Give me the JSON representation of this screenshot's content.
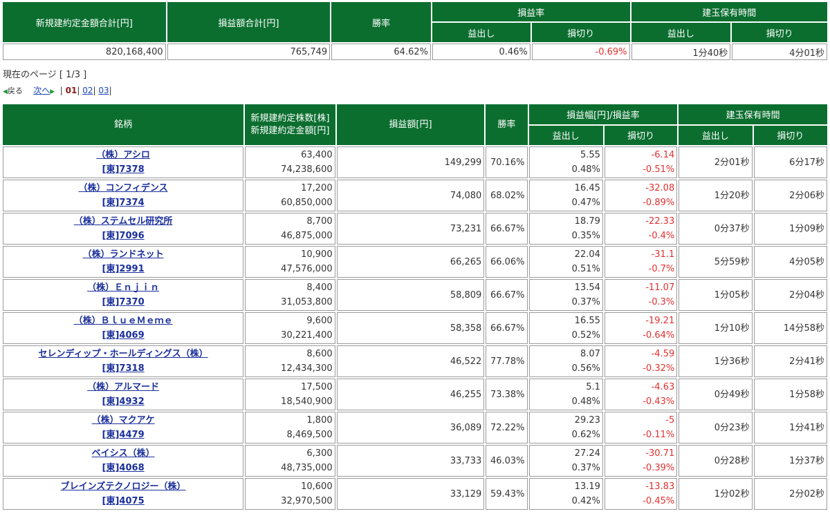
{
  "summary": {
    "headers": {
      "total_amount": "新規建約定金額合計[円]",
      "total_pl": "損益額合計[円]",
      "win_rate": "勝率",
      "pl_rate": "損益率",
      "pl_rate_profit": "益出し",
      "pl_rate_loss": "損切り",
      "hold_time": "建玉保有時間",
      "hold_profit": "益出し",
      "hold_loss": "損切り"
    },
    "values": {
      "total_amount": "820,168,400",
      "total_pl": "765,749",
      "win_rate": "64.62%",
      "pl_rate_profit": "0.46%",
      "pl_rate_loss": "-0.69%",
      "hold_profit": "1分40秒",
      "hold_loss": "4分01秒"
    }
  },
  "pager": {
    "current_label": "現在のページ [ 1/3 ]",
    "back": "戻る",
    "next": "次へ",
    "pages": [
      "01",
      "02",
      "03"
    ]
  },
  "table": {
    "headers": {
      "name": "銘柄",
      "shares_amount_1": "新規建約定株数[株]",
      "shares_amount_2": "新規建約定金額[円]",
      "pl": "損益額[円]",
      "win_rate": "勝率",
      "pl_width": "損益幅[円]/損益率",
      "pl_profit": "益出し",
      "pl_loss": "損切り",
      "hold_time": "建玉保有時間",
      "hold_profit": "益出し",
      "hold_loss": "損切り"
    },
    "rows": [
      {
        "name": "（株）アシロ",
        "code": "[東]7378",
        "shares": "63,400",
        "amount": "74,238,600",
        "pl": "149,299",
        "win": "70.16%",
        "profit_width": "5.55",
        "profit_rate": "0.48%",
        "loss_width": "-6.14",
        "loss_rate": "-0.51%",
        "hold_profit": "2分01秒",
        "hold_loss": "6分17秒"
      },
      {
        "name": "（株）コンフィデンス",
        "code": "[東]7374",
        "shares": "17,200",
        "amount": "60,850,000",
        "pl": "74,080",
        "win": "68.02%",
        "profit_width": "16.45",
        "profit_rate": "0.47%",
        "loss_width": "-32.08",
        "loss_rate": "-0.89%",
        "hold_profit": "1分20秒",
        "hold_loss": "2分06秒"
      },
      {
        "name": "（株）ステムセル研究所",
        "code": "[東]7096",
        "shares": "8,700",
        "amount": "46,875,000",
        "pl": "73,231",
        "win": "66.67%",
        "profit_width": "18.79",
        "profit_rate": "0.35%",
        "loss_width": "-22.33",
        "loss_rate": "-0.4%",
        "hold_profit": "0分37秒",
        "hold_loss": "1分09秒"
      },
      {
        "name": "（株）ランドネット",
        "code": "[東]2991",
        "shares": "10,900",
        "amount": "47,576,000",
        "pl": "66,265",
        "win": "66.06%",
        "profit_width": "22.04",
        "profit_rate": "0.51%",
        "loss_width": "-31.1",
        "loss_rate": "-0.7%",
        "hold_profit": "5分59秒",
        "hold_loss": "4分05秒"
      },
      {
        "name": "（株）Ｅｎｊｉｎ",
        "code": "[東]7370",
        "shares": "8,400",
        "amount": "31,053,800",
        "pl": "58,809",
        "win": "66.67%",
        "profit_width": "13.54",
        "profit_rate": "0.37%",
        "loss_width": "-11.07",
        "loss_rate": "-0.3%",
        "hold_profit": "1分05秒",
        "hold_loss": "2分04秒"
      },
      {
        "name": "（株）ＢｌｕｅＭｅｍｅ",
        "code": "[東]4069",
        "shares": "9,600",
        "amount": "30,221,400",
        "pl": "58,358",
        "win": "66.67%",
        "profit_width": "16.55",
        "profit_rate": "0.52%",
        "loss_width": "-19.21",
        "loss_rate": "-0.64%",
        "hold_profit": "1分10秒",
        "hold_loss": "14分58秒"
      },
      {
        "name": "セレンディップ・ホールディングス（株）",
        "code": "[東]7318",
        "shares": "8,600",
        "amount": "12,434,300",
        "pl": "46,522",
        "win": "77.78%",
        "profit_width": "8.07",
        "profit_rate": "0.56%",
        "loss_width": "-4.59",
        "loss_rate": "-0.32%",
        "hold_profit": "1分36秒",
        "hold_loss": "2分41秒"
      },
      {
        "name": "（株）アルマード",
        "code": "[東]4932",
        "shares": "17,500",
        "amount": "18,540,900",
        "pl": "46,255",
        "win": "73.38%",
        "profit_width": "5.1",
        "profit_rate": "0.48%",
        "loss_width": "-4.63",
        "loss_rate": "-0.43%",
        "hold_profit": "0分49秒",
        "hold_loss": "1分58秒"
      },
      {
        "name": "（株）マクアケ",
        "code": "[東]4479",
        "shares": "1,800",
        "amount": "8,469,500",
        "pl": "36,089",
        "win": "72.22%",
        "profit_width": "29.23",
        "profit_rate": "0.62%",
        "loss_width": "-5",
        "loss_rate": "-0.11%",
        "hold_profit": "0分23秒",
        "hold_loss": "1分41秒"
      },
      {
        "name": "ベイシス（株）",
        "code": "[東]4068",
        "shares": "6,300",
        "amount": "48,735,000",
        "pl": "33,733",
        "win": "46.03%",
        "profit_width": "27.24",
        "profit_rate": "0.37%",
        "loss_width": "-30.71",
        "loss_rate": "-0.39%",
        "hold_profit": "0分28秒",
        "hold_loss": "1分37秒"
      },
      {
        "name": "ブレインズテクノロジー（株）",
        "code": "[東]4075",
        "shares": "10,600",
        "amount": "32,970,500",
        "pl": "33,129",
        "win": "59.43%",
        "profit_width": "13.19",
        "profit_rate": "0.42%",
        "loss_width": "-13.83",
        "loss_rate": "-0.45%",
        "hold_profit": "1分02秒",
        "hold_loss": "2分02秒"
      }
    ]
  },
  "colors": {
    "header_green": "#0b6e2f",
    "negative_red": "#e0312f",
    "link_blue": "#1a2f9b"
  }
}
